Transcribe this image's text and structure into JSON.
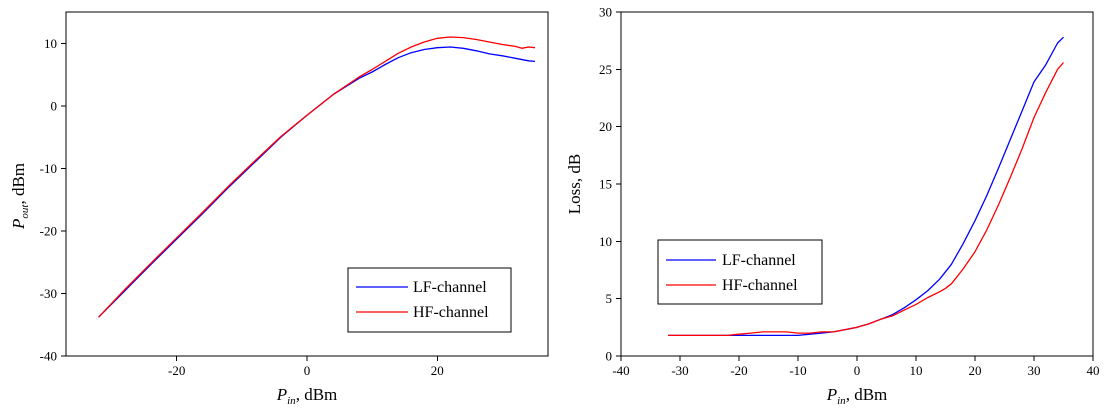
{
  "chart_data": [
    {
      "type": "line",
      "ylabel_main": "P",
      "ylabel_sub": "out",
      "ylabel_unit": ", dBm",
      "xlabel_main": "P",
      "xlabel_sub": "in",
      "xlabel_unit": ", dBm",
      "xlim": [
        -37,
        37
      ],
      "ylim": [
        -40,
        15
      ],
      "xticks": [
        -20,
        0,
        20
      ],
      "yticks": [
        -40,
        -30,
        -20,
        -10,
        0,
        10
      ],
      "grid": false,
      "legend_position": "bottom-right",
      "series": [
        {
          "name": "LF-channel",
          "color": "#0000ff",
          "x": [
            -32,
            -28,
            -24,
            -20,
            -16,
            -12,
            -8,
            -4,
            0,
            4,
            8,
            10,
            12,
            14,
            16,
            18,
            20,
            22,
            24,
            26,
            28,
            30,
            32,
            34,
            35
          ],
          "y": [
            -33.8,
            -29.6,
            -25.4,
            -21.3,
            -17.2,
            -13.0,
            -9.0,
            -5.0,
            -1.5,
            1.8,
            4.4,
            5.4,
            6.6,
            7.7,
            8.5,
            9.0,
            9.3,
            9.4,
            9.2,
            8.8,
            8.3,
            8.0,
            7.6,
            7.2,
            7.1
          ]
        },
        {
          "name": "HF-channel",
          "color": "#ff0000",
          "x": [
            -32,
            -28,
            -24,
            -20,
            -16,
            -12,
            -8,
            -4,
            0,
            4,
            8,
            10,
            12,
            14,
            16,
            18,
            20,
            22,
            24,
            26,
            28,
            30,
            32,
            33,
            34,
            35
          ],
          "y": [
            -33.8,
            -29.4,
            -25.2,
            -21.1,
            -17.0,
            -12.8,
            -8.8,
            -4.9,
            -1.5,
            1.8,
            4.6,
            5.8,
            7.1,
            8.4,
            9.4,
            10.2,
            10.8,
            11.0,
            10.9,
            10.6,
            10.2,
            9.8,
            9.5,
            9.2,
            9.4,
            9.3
          ]
        }
      ]
    },
    {
      "type": "line",
      "ylabel": "Loss, dB",
      "xlabel_main": "P",
      "xlabel_sub": "in",
      "xlabel_unit": ", dBm",
      "xlim": [
        -40,
        40
      ],
      "ylim": [
        0,
        30
      ],
      "xticks": [
        -40,
        -30,
        -20,
        -10,
        0,
        10,
        20,
        30,
        40
      ],
      "yticks": [
        0,
        5,
        10,
        15,
        20,
        25,
        30
      ],
      "grid": false,
      "legend_position": "middle-left",
      "series": [
        {
          "name": "LF-channel",
          "color": "#0000ff",
          "x": [
            -32,
            -28,
            -24,
            -20,
            -16,
            -12,
            -10,
            -8,
            -6,
            -4,
            -2,
            0,
            2,
            4,
            6,
            8,
            10,
            12,
            14,
            16,
            18,
            20,
            22,
            24,
            26,
            28,
            30,
            32,
            34,
            35
          ],
          "y": [
            1.8,
            1.8,
            1.8,
            1.8,
            1.8,
            1.8,
            1.8,
            1.9,
            2.0,
            2.1,
            2.3,
            2.5,
            2.8,
            3.2,
            3.6,
            4.2,
            4.9,
            5.7,
            6.7,
            8.0,
            9.8,
            11.8,
            14.0,
            16.4,
            18.9,
            21.4,
            23.9,
            25.4,
            27.3,
            27.8
          ]
        },
        {
          "name": "HF-channel",
          "color": "#ff0000",
          "x": [
            -32,
            -28,
            -24,
            -22,
            -20,
            -18,
            -16,
            -14,
            -12,
            -10,
            -8,
            -6,
            -4,
            -2,
            0,
            2,
            4,
            6,
            8,
            10,
            12,
            14,
            15,
            16,
            18,
            20,
            22,
            24,
            26,
            28,
            30,
            32,
            34,
            35
          ],
          "y": [
            1.8,
            1.8,
            1.8,
            1.8,
            1.9,
            2.0,
            2.1,
            2.1,
            2.1,
            2.0,
            2.0,
            2.1,
            2.1,
            2.3,
            2.5,
            2.8,
            3.2,
            3.5,
            4.0,
            4.5,
            5.1,
            5.6,
            5.9,
            6.3,
            7.6,
            9.1,
            11.0,
            13.2,
            15.6,
            18.1,
            20.8,
            23.0,
            25.0,
            25.6
          ]
        }
      ]
    }
  ]
}
